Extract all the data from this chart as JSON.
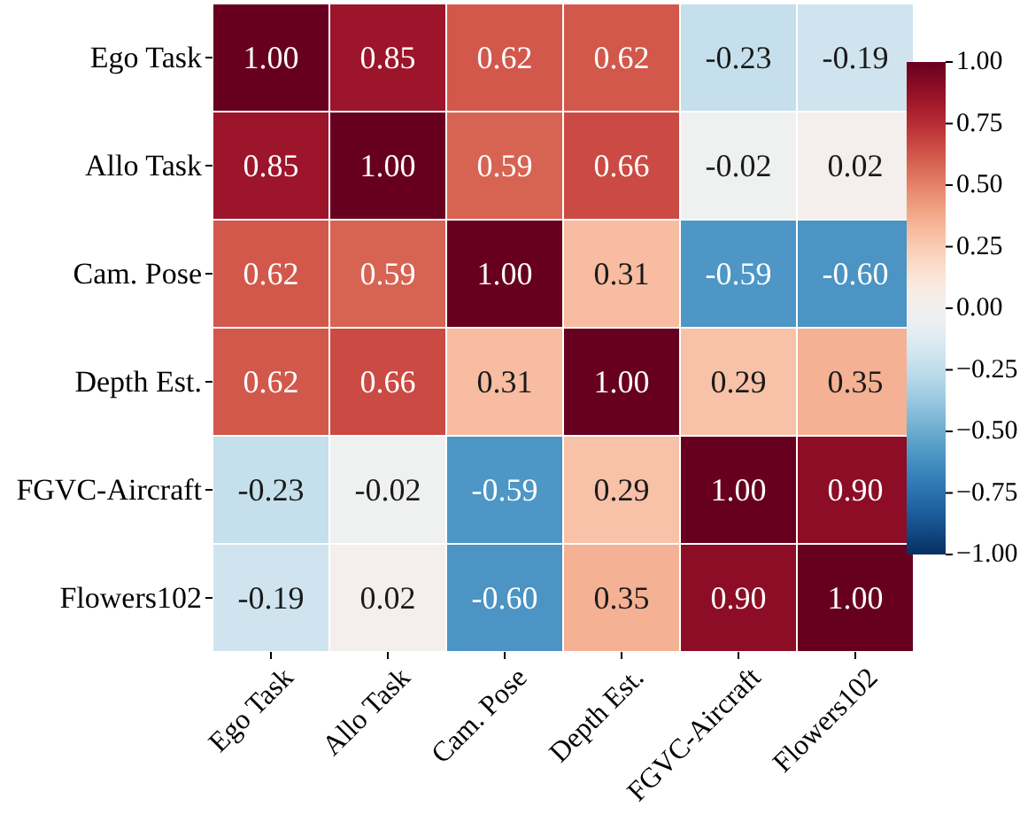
{
  "chart_data": {
    "type": "heatmap",
    "categories": [
      "Ego Task",
      "Allo Task",
      "Cam. Pose",
      "Depth Est.",
      "FGVC-Aircraft",
      "Flowers102"
    ],
    "y_categories": [
      "Ego Task",
      "Allo Task",
      "Cam. Pose",
      "Depth Est.",
      "FGVC-Aircraft",
      "Flowers102"
    ],
    "cells": [
      [
        1.0,
        0.85,
        0.62,
        0.62,
        -0.23,
        -0.19
      ],
      [
        0.85,
        1.0,
        0.59,
        0.66,
        -0.02,
        0.02
      ],
      [
        0.62,
        0.59,
        1.0,
        0.31,
        -0.59,
        -0.6
      ],
      [
        0.62,
        0.66,
        0.31,
        1.0,
        0.29,
        0.35
      ],
      [
        -0.23,
        -0.02,
        -0.59,
        0.29,
        1.0,
        0.9
      ],
      [
        -0.19,
        0.02,
        -0.6,
        0.35,
        0.9,
        1.0
      ]
    ],
    "cell_labels": [
      [
        "1.00",
        "0.85",
        "0.62",
        "0.62",
        "-0.23",
        "-0.19"
      ],
      [
        "0.85",
        "1.00",
        "0.59",
        "0.66",
        "-0.02",
        "0.02"
      ],
      [
        "0.62",
        "0.59",
        "1.00",
        "0.31",
        "-0.59",
        "-0.60"
      ],
      [
        "0.62",
        "0.66",
        "0.31",
        "1.00",
        "0.29",
        "0.35"
      ],
      [
        "-0.23",
        "-0.02",
        "-0.59",
        "0.29",
        "1.00",
        "0.90"
      ],
      [
        "-0.19",
        "0.02",
        "-0.60",
        "0.35",
        "0.90",
        "1.00"
      ]
    ],
    "data_labels": true,
    "clim": [
      -1,
      1
    ],
    "cticks": [
      {
        "value": 1,
        "label": "1.00"
      },
      {
        "value": 0.75,
        "label": "0.75"
      },
      {
        "value": 0.5,
        "label": "0.50"
      },
      {
        "value": 0.25,
        "label": "0.25"
      },
      {
        "value": 0,
        "label": "0.00"
      },
      {
        "value": -0.25,
        "label": "−0.25"
      },
      {
        "value": -0.5,
        "label": "−0.50"
      },
      {
        "value": -0.75,
        "label": "−0.75"
      },
      {
        "value": -1,
        "label": "−1.00"
      }
    ]
  }
}
